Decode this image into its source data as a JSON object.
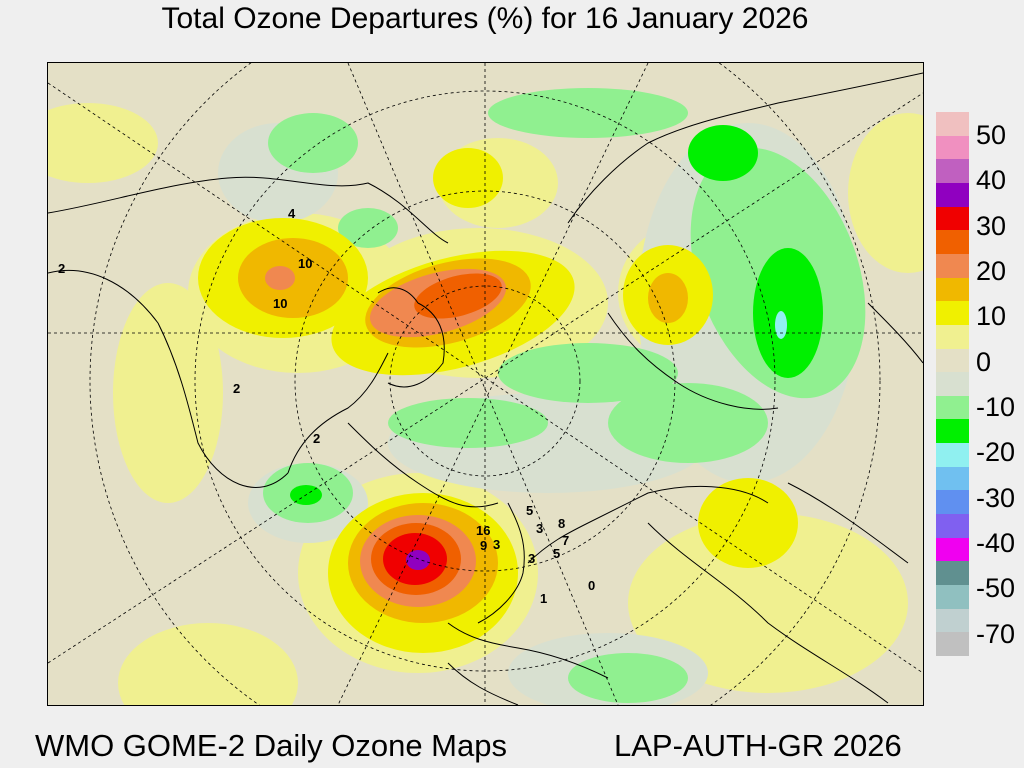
{
  "title": "Total Ozone Departures (%) for 16 January 2026",
  "footer": {
    "left": "WMO GOME-2 Daily Ozone Maps",
    "right": "LAP-AUTH-GR 2026"
  },
  "legend": {
    "labels": [
      "50",
      "40",
      "30",
      "20",
      "10",
      "0",
      "-10",
      "-20",
      "-30",
      "-40",
      "-50",
      "-70"
    ],
    "colors": [
      "#f0c0c0",
      "#f090c0",
      "#c060c0",
      "#9000c0",
      "#f00000",
      "#f06000",
      "#f08850",
      "#f0b800",
      "#f0f000",
      "#f0f090",
      "#e4e0c6",
      "#d8e0d0",
      "#90f090",
      "#00f000",
      "#90f0f0",
      "#70c0f0",
      "#6090f0",
      "#8060f0",
      "#f000f0",
      "#609090",
      "#90c0c0",
      "#c0d0d0",
      "#c0c0c0"
    ]
  },
  "contour_labels": [
    "2",
    "4",
    "10",
    "10",
    "2",
    "2",
    "16",
    "3",
    "3",
    "8",
    "7",
    "5",
    "5",
    "3",
    "0",
    "1",
    "9"
  ]
}
